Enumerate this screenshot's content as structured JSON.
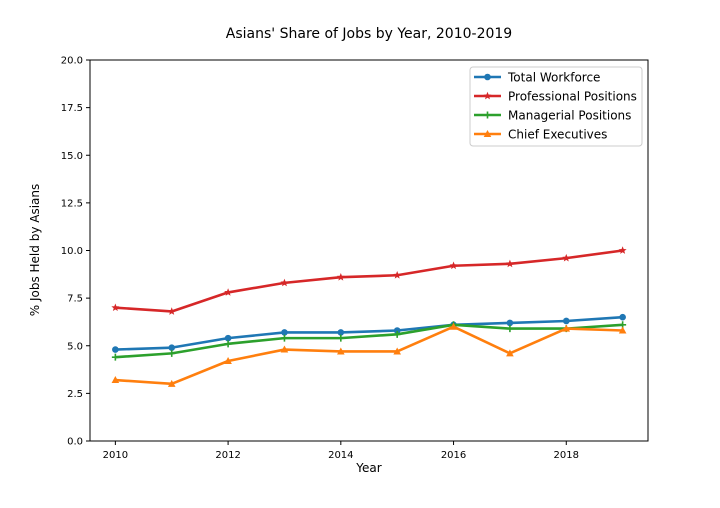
{
  "chart_data": {
    "type": "line",
    "title": "Asians' Share of Jobs by Year, 2010-2019",
    "xlabel": "Year",
    "ylabel": "% Jobs Held by Asians",
    "x": [
      2010,
      2011,
      2012,
      2013,
      2014,
      2015,
      2016,
      2017,
      2018,
      2019
    ],
    "xlim": [
      2009.55,
      2019.45
    ],
    "ylim": [
      0,
      20
    ],
    "xticks": [
      2010,
      2012,
      2014,
      2016,
      2018
    ],
    "yticks": [
      0.0,
      2.5,
      5.0,
      7.5,
      10.0,
      12.5,
      15.0,
      17.5,
      20.0
    ],
    "xtick_labels": [
      "2010",
      "2012",
      "2014",
      "2016",
      "2018"
    ],
    "ytick_labels": [
      "0.0",
      "2.5",
      "5.0",
      "7.5",
      "10.0",
      "12.5",
      "15.0",
      "17.5",
      "20.0"
    ],
    "grid": false,
    "legend_position": "top-right",
    "series": [
      {
        "name": "Total Workforce",
        "color": "#1f77b4",
        "marker": "circle",
        "values": [
          4.8,
          4.9,
          5.4,
          5.7,
          5.7,
          5.8,
          6.1,
          6.2,
          6.3,
          6.5
        ]
      },
      {
        "name": "Professional Positions",
        "color": "#d62728",
        "marker": "star",
        "values": [
          7.0,
          6.8,
          7.8,
          8.3,
          8.6,
          8.7,
          9.2,
          9.3,
          9.6,
          10.0
        ]
      },
      {
        "name": "Managerial Positions",
        "color": "#2ca02c",
        "marker": "plus",
        "values": [
          4.4,
          4.6,
          5.1,
          5.4,
          5.4,
          5.6,
          6.1,
          5.9,
          5.9,
          6.1
        ]
      },
      {
        "name": "Chief Executives",
        "color": "#ff7f0e",
        "marker": "triangle",
        "values": [
          3.2,
          3.0,
          4.2,
          4.8,
          4.7,
          4.7,
          6.0,
          4.6,
          5.9,
          5.8
        ]
      }
    ]
  }
}
